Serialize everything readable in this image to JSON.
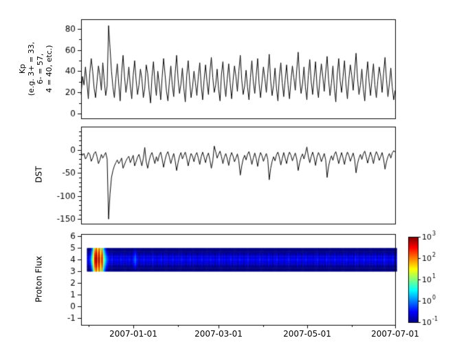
{
  "figure": {
    "background": "#ffffff"
  },
  "chart_data": [
    {
      "id": "kp",
      "type": "line",
      "ylabel": "Kp\n(e.g. 3+ = 33,\n6- = 57,\n4 = 40, etc.)",
      "ylim": [
        -4.5,
        89
      ],
      "yticks": [
        0,
        20,
        40,
        60,
        80
      ],
      "ytick_minor": 10,
      "line_color": "#000000",
      "values_daily": [
        18,
        35,
        27,
        44,
        30,
        14,
        38,
        52,
        40,
        24,
        15,
        30,
        45,
        36,
        22,
        48,
        31,
        17,
        26,
        83,
        62,
        40,
        25,
        15,
        33,
        47,
        28,
        12,
        38,
        55,
        35,
        20,
        30,
        44,
        26,
        14,
        36,
        50,
        32,
        18,
        27,
        42,
        33,
        15,
        24,
        46,
        38,
        22,
        10,
        35,
        49,
        30,
        17,
        40,
        28,
        13,
        34,
        52,
        37,
        21,
        12,
        30,
        45,
        27,
        16,
        38,
        55,
        33,
        19,
        28,
        43,
        24,
        11,
        36,
        50,
        31,
        15,
        25,
        40,
        29,
        17,
        35,
        48,
        26,
        13,
        32,
        46,
        30,
        18,
        39,
        53,
        34,
        20,
        27,
        42,
        23,
        12,
        37,
        49,
        28,
        16,
        33,
        47,
        29,
        14,
        31,
        45,
        35,
        21,
        40,
        55,
        32,
        18,
        26,
        41,
        25,
        13,
        34,
        50,
        30,
        19,
        36,
        52,
        28,
        15,
        30,
        44,
        33,
        20,
        38,
        56,
        31,
        17,
        27,
        43,
        24,
        12,
        35,
        48,
        29,
        16,
        32,
        46,
        27,
        14,
        31,
        45,
        34,
        22,
        41,
        58,
        33,
        19,
        28,
        44,
        25,
        13,
        36,
        51,
        30,
        18,
        34,
        49,
        26,
        15,
        33,
        47,
        35,
        21,
        39,
        54,
        32,
        17,
        29,
        45,
        24,
        11,
        37,
        52,
        31,
        20,
        35,
        50,
        28,
        14,
        32,
        46,
        36,
        22,
        40,
        57,
        33,
        18,
        27,
        42,
        23,
        12,
        34,
        49,
        30,
        17,
        33,
        47,
        27,
        15,
        31,
        44,
        35,
        20,
        38,
        53,
        32,
        16,
        28,
        43,
        25,
        13,
        22
      ]
    },
    {
      "id": "dst",
      "type": "line",
      "ylabel": "DST",
      "ylim": [
        -160,
        50
      ],
      "yticks": [
        0,
        -50,
        -100,
        -150
      ],
      "ytick_minor": 10,
      "line_color": "#000000",
      "values_daily": [
        -5,
        -12,
        -8,
        -20,
        -15,
        -6,
        -10,
        -25,
        -18,
        -8,
        -4,
        -15,
        -30,
        -22,
        -10,
        -18,
        -12,
        -6,
        -20,
        -150,
        -95,
        -60,
        -45,
        -35,
        -28,
        -22,
        -30,
        -25,
        -18,
        -40,
        -32,
        -24,
        -18,
        -14,
        -28,
        -20,
        -12,
        -35,
        -26,
        -16,
        -10,
        -22,
        -35,
        -18,
        5,
        -26,
        -40,
        -24,
        -12,
        -6,
        -18,
        -30,
        -15,
        -25,
        -12,
        -5,
        -20,
        -38,
        -22,
        -10,
        -4,
        -16,
        -30,
        -18,
        -8,
        -24,
        -45,
        -28,
        -14,
        -6,
        -20,
        -12,
        -5,
        -18,
        -35,
        -20,
        -8,
        -14,
        -26,
        -12,
        -6,
        -18,
        -32,
        -15,
        -5,
        -16,
        -28,
        -14,
        -7,
        -22,
        -40,
        -24,
        8,
        -4,
        -18,
        -10,
        -3,
        -15,
        -30,
        -16,
        -8,
        -20,
        -34,
        -16,
        -6,
        -14,
        -26,
        -18,
        -9,
        -24,
        -55,
        -35,
        -20,
        -12,
        -22,
        -10,
        -4,
        -16,
        -32,
        -18,
        -7,
        -19,
        -36,
        -17,
        -6,
        -13,
        -25,
        -16,
        -8,
        -21,
        -65,
        -40,
        -25,
        -15,
        -24,
        -11,
        -5,
        -17,
        -33,
        -19,
        -6,
        -18,
        -30,
        -14,
        -5,
        -12,
        -24,
        -15,
        -7,
        -20,
        -45,
        -28,
        -16,
        -9,
        -20,
        -8,
        6,
        -14,
        -28,
        -15,
        -5,
        -17,
        -34,
        -16,
        -6,
        -13,
        -26,
        -17,
        -8,
        -22,
        -60,
        -36,
        -22,
        -13,
        -23,
        -10,
        -4,
        -16,
        -30,
        -17,
        -6,
        -18,
        -32,
        -15,
        -5,
        -12,
        -25,
        -16,
        -7,
        -21,
        -50,
        -30,
        -18,
        -10,
        -21,
        -9,
        -3,
        -15,
        -29,
        -16,
        -5,
        -16,
        -30,
        -14,
        -4,
        -11,
        -23,
        -15,
        -6,
        -20,
        -42,
        -26,
        -15,
        -8,
        -18,
        -7,
        -2,
        -5
      ]
    },
    {
      "id": "proton",
      "type": "heatmap",
      "ylabel": "Proton Flux",
      "ylim": [
        -1.6,
        6.2
      ],
      "yticks": [
        6,
        5,
        4,
        3,
        2,
        1,
        0,
        -1
      ],
      "band_y": [
        3,
        5
      ],
      "color_range_log10": [
        -1,
        3
      ],
      "colorbar": {
        "scale": "log",
        "ticks": [
          "10^3",
          "10^2",
          "10^1",
          "10^0",
          "10^-1"
        ],
        "range_log10": [
          -1,
          3
        ]
      },
      "values_daily_log10": [
        null,
        null,
        null,
        null,
        -0.6,
        -0.5,
        -0.2,
        0.5,
        1.5,
        2.5,
        3.0,
        2.2,
        2.9,
        1.8,
        2.6,
        1.2,
        0.5,
        0.0,
        -0.3,
        -0.5,
        -0.6,
        -0.4,
        -0.7,
        -0.5,
        -0.6,
        -0.5,
        -0.7,
        -0.4,
        -0.6,
        -0.5,
        -0.7,
        -0.5,
        -0.6,
        -0.4,
        -0.7,
        -0.5,
        -0.3,
        -0.1,
        -0.4,
        -0.6,
        -0.7,
        -0.5,
        -0.6,
        -0.4,
        -0.7,
        -0.5,
        -0.6,
        -0.5,
        -0.7,
        -0.4,
        -0.6,
        -0.5,
        -0.7,
        -0.5,
        -0.6,
        -0.4,
        -0.7,
        -0.5,
        -0.6,
        -0.5,
        -0.7,
        -0.5,
        -0.6,
        -0.4,
        -0.7,
        -0.5,
        -0.6,
        -0.5,
        -0.7,
        -0.4,
        -0.6,
        -0.5,
        -0.7,
        -0.5,
        -0.6,
        -0.4,
        -0.7,
        -0.5,
        -0.6,
        -0.5,
        -0.7,
        -0.5,
        -0.6,
        -0.4,
        -0.7,
        -0.5,
        -0.6,
        -0.5,
        -0.7,
        -0.4,
        -0.6,
        -0.5,
        -0.7,
        -0.5,
        -0.6,
        -0.4,
        -0.7,
        -0.5,
        -0.6,
        -0.5,
        -0.7,
        -0.5,
        -0.6,
        -0.4,
        -0.7,
        -0.5,
        -0.6,
        -0.5,
        -0.7,
        -0.4,
        -0.6,
        -0.5,
        -0.7,
        -0.5,
        -0.6,
        -0.4,
        -0.7,
        -0.5,
        -0.6,
        -0.5,
        -0.7,
        -0.5,
        -0.6,
        -0.4,
        -0.7,
        -0.5,
        -0.6,
        -0.5,
        -0.7,
        -0.4,
        -0.6,
        -0.5,
        -0.7,
        -0.5,
        -0.6,
        -0.4,
        -0.7,
        -0.5,
        -0.6,
        -0.5,
        -0.7,
        -0.5,
        -0.6,
        -0.4,
        -0.7,
        -0.5,
        -0.6,
        -0.5,
        -0.7,
        -0.4,
        -0.6,
        -0.5,
        -0.7,
        -0.5,
        -0.6,
        -0.4,
        -0.7,
        -0.5,
        -0.6,
        -0.5,
        -0.7,
        -0.5,
        -0.6,
        -0.4,
        -0.7,
        -0.5,
        -0.6,
        -0.5,
        -0.7,
        -0.4,
        -0.6,
        -0.5,
        -0.7,
        -0.5,
        -0.6,
        -0.4,
        -0.7,
        -0.5,
        -0.6,
        -0.5,
        -0.7,
        -0.5,
        -0.6,
        -0.4,
        -0.7,
        -0.5,
        -0.6,
        -0.5,
        -0.7,
        -0.4,
        -0.6,
        -0.5,
        -0.7,
        -0.5,
        -0.6,
        -0.4,
        -0.7,
        -0.5,
        -0.6,
        -0.5,
        -0.7,
        -0.5,
        -0.6,
        -0.4,
        -0.7,
        -0.5,
        -0.6,
        -0.5,
        -0.7,
        -0.4,
        -0.6,
        -0.5,
        -0.7,
        -0.5,
        -0.6,
        -0.4,
        -0.7,
        -0.5
      ]
    }
  ],
  "x_axis": {
    "total_days": 217,
    "ticks": [
      {
        "day": 36,
        "label": "2007-01-01"
      },
      {
        "day": 95,
        "label": "2007-03-01"
      },
      {
        "day": 156,
        "label": "2007-05-01"
      },
      {
        "day": 217,
        "label": "2007-07-01"
      }
    ],
    "minor_days": [
      5,
      67,
      126,
      187
    ]
  }
}
